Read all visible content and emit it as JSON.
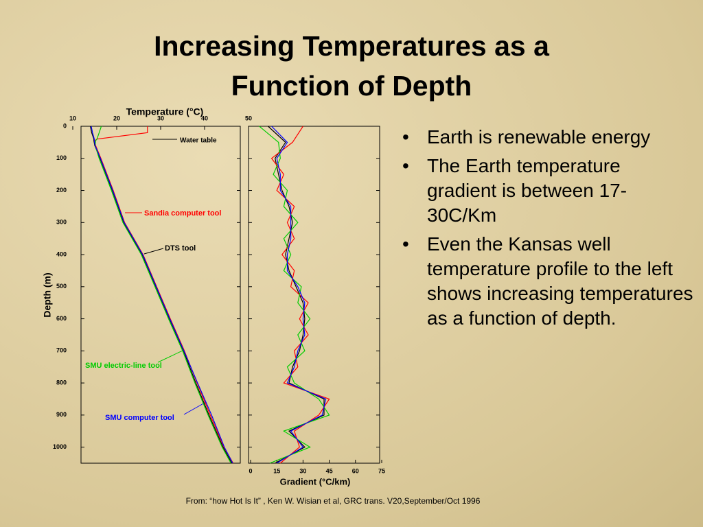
{
  "slide": {
    "title_lines": [
      "Increasing Temperatures as a",
      "Function of Depth"
    ],
    "bullets": [
      "Earth is renewable energy",
      "The Earth temperature gradient is between 17-30C/Km",
      "Even the Kansas well temperature profile to the left shows increasing temperatures as a function of depth."
    ],
    "source": "From: “how Hot Is It” , Ken W. Wisian et al, GRC trans. V20,September/Oct 1996"
  },
  "chart_data": [
    {
      "type": "line",
      "x_label": "Temperature (°C)",
      "y_label": "Depth (m)",
      "y": [
        0,
        20,
        40,
        45,
        60,
        100,
        200,
        300,
        400,
        500,
        600,
        700,
        800,
        900,
        1000,
        1050
      ],
      "xlim": [
        10,
        50
      ],
      "xticks": [
        10,
        20,
        30,
        40,
        50
      ],
      "ylim": [
        0,
        1050
      ],
      "y_reversed": true,
      "yticks": [
        0,
        100,
        200,
        300,
        400,
        500,
        600,
        700,
        800,
        900,
        1000
      ],
      "annotation": "Water table",
      "series": [
        {
          "name": "DTS tool",
          "color": "#000000",
          "values": [
            14.0,
            14.3,
            14.8,
            14.8,
            15.0,
            16.2,
            19.0,
            21.6,
            25.8,
            28.9,
            32.0,
            35.2,
            38.0,
            41.0,
            44.2,
            46.2
          ]
        },
        {
          "name": "Sandia computer tool",
          "color": "#ff0000",
          "values": [
            27,
            27,
            15.5,
            15,
            15.2,
            16.4,
            19.2,
            21.8,
            26.0,
            29.1,
            32.2,
            35.4,
            38.3,
            41.3,
            44.4,
            46.5
          ]
        },
        {
          "name": "SMU electric-line tool",
          "color": "#00cc00",
          "values": [
            16.5,
            16,
            15.5,
            15.2,
            15.1,
            16.0,
            18.8,
            21.4,
            25.6,
            28.7,
            31.8,
            35.0,
            37.8,
            40.8,
            44.0,
            46.0
          ]
        },
        {
          "name": "SMU computer tool",
          "color": "#0000ff",
          "values": [
            14.2,
            14.5,
            14.9,
            14.9,
            15.1,
            16.3,
            19.1,
            21.7,
            25.9,
            29.0,
            32.1,
            35.3,
            38.4,
            41.6,
            44.5,
            46.4
          ]
        }
      ]
    },
    {
      "type": "line",
      "x_label": "Gradient (°C/km)",
      "y": [
        0,
        50,
        100,
        150,
        200,
        250,
        300,
        350,
        400,
        450,
        500,
        550,
        600,
        650,
        700,
        750,
        800,
        850,
        900,
        950,
        1000,
        1050
      ],
      "xlim": [
        0,
        75
      ],
      "xticks": [
        0,
        15,
        30,
        45,
        60,
        75
      ],
      "ylim": [
        0,
        1050
      ],
      "y_reversed": true,
      "yticks": [
        0,
        100,
        200,
        300,
        400,
        500,
        600,
        700,
        800,
        900,
        1000
      ],
      "series": [
        {
          "color": "#000000",
          "values": [
            10,
            20,
            14,
            16,
            18,
            22,
            24,
            22,
            20,
            22,
            26,
            30,
            31,
            30,
            28,
            24,
            22,
            42,
            42,
            22,
            31,
            14
          ]
        },
        {
          "color": "#ff0000",
          "values": [
            30,
            24,
            12,
            19,
            15,
            25,
            21,
            25,
            18,
            25,
            23,
            33,
            28,
            33,
            25,
            27,
            19,
            45,
            39,
            25,
            28,
            17
          ]
        },
        {
          "color": "#00cc00",
          "values": [
            5,
            16,
            17,
            13,
            21,
            19,
            27,
            19,
            23,
            19,
            29,
            27,
            34,
            27,
            31,
            21,
            25,
            39,
            45,
            19,
            34,
            11
          ]
        },
        {
          "color": "#0000ff",
          "values": [
            12,
            21,
            15,
            17,
            17,
            23,
            23,
            23,
            21,
            21,
            27,
            31,
            30,
            31,
            27,
            25,
            21,
            43,
            41,
            23,
            30,
            15
          ]
        }
      ]
    }
  ]
}
